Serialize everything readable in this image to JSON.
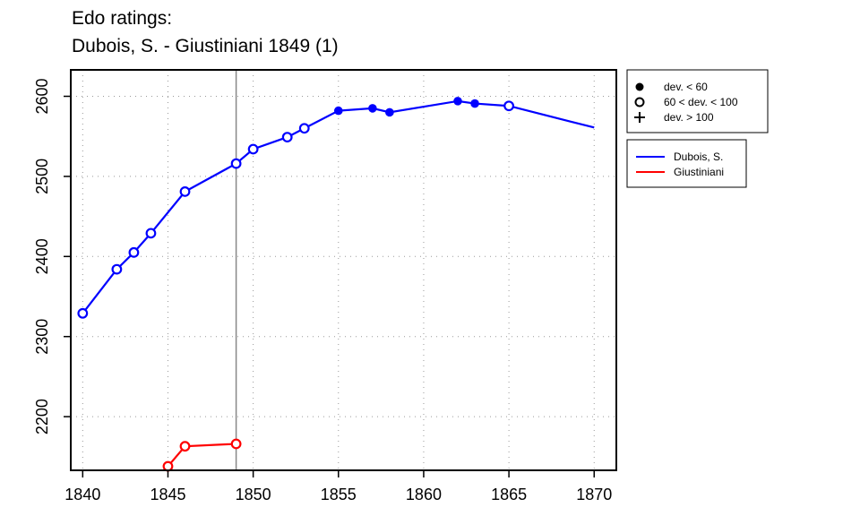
{
  "chart_data": {
    "type": "line",
    "title": "Edo ratings:",
    "subtitle": "Dubois, S. - Giustiniani 1849 (1)",
    "xlabel": "",
    "ylabel": "",
    "xlim": [
      1839.3,
      1871.3
    ],
    "ylim": [
      2133,
      2633
    ],
    "x_ticks": [
      1840,
      1845,
      1850,
      1855,
      1860,
      1865,
      1870
    ],
    "y_ticks": [
      2200,
      2300,
      2400,
      2500,
      2600
    ],
    "grid": true,
    "reference_line_x": 1849,
    "deviation_legend": [
      {
        "marker": "filled-circle",
        "label": "dev. < 60"
      },
      {
        "marker": "open-circle",
        "label": "60 < dev. < 100"
      },
      {
        "marker": "plus",
        "label": "dev. > 100"
      }
    ],
    "series_legend_placement": "right",
    "series": [
      {
        "name": "Dubois, S.",
        "color": "#0000ff",
        "points": [
          {
            "x": 1840,
            "y": 2329,
            "marker": "open"
          },
          {
            "x": 1842,
            "y": 2384,
            "marker": "open"
          },
          {
            "x": 1843,
            "y": 2405,
            "marker": "open"
          },
          {
            "x": 1844,
            "y": 2429,
            "marker": "open"
          },
          {
            "x": 1846,
            "y": 2481,
            "marker": "open"
          },
          {
            "x": 1849,
            "y": 2516,
            "marker": "open"
          },
          {
            "x": 1850,
            "y": 2534,
            "marker": "open"
          },
          {
            "x": 1852,
            "y": 2549,
            "marker": "open"
          },
          {
            "x": 1853,
            "y": 2560,
            "marker": "open"
          },
          {
            "x": 1855,
            "y": 2582,
            "marker": "filled"
          },
          {
            "x": 1857,
            "y": 2585,
            "marker": "filled"
          },
          {
            "x": 1858,
            "y": 2580,
            "marker": "filled"
          },
          {
            "x": 1862,
            "y": 2594,
            "marker": "filled"
          },
          {
            "x": 1863,
            "y": 2591,
            "marker": "filled"
          },
          {
            "x": 1865,
            "y": 2588,
            "marker": "open"
          },
          {
            "x": 1870,
            "y": 2561,
            "marker": "none"
          }
        ]
      },
      {
        "name": "Giustiniani",
        "color": "#ff0000",
        "points": [
          {
            "x": 1845,
            "y": 2138,
            "marker": "open"
          },
          {
            "x": 1846,
            "y": 2163,
            "marker": "open"
          },
          {
            "x": 1849,
            "y": 2166,
            "marker": "open"
          }
        ]
      }
    ]
  }
}
